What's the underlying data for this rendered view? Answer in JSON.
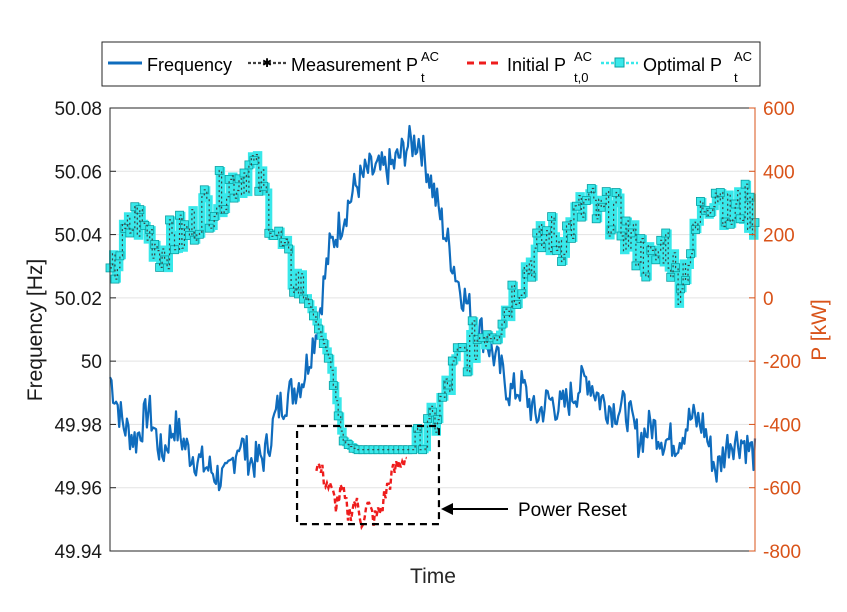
{
  "chart_data": {
    "type": "line",
    "xlabel": "Time",
    "ylabel_left": "Frequency [Hz]",
    "ylabel_right": "P [kW]",
    "ylim_left": [
      49.94,
      50.08
    ],
    "ylim_right": [
      -800,
      600
    ],
    "yticks_left": [
      "50.08",
      "50.06",
      "50.04",
      "50.02",
      "50",
      "49.98",
      "49.96",
      "49.94"
    ],
    "yticks_right": [
      "600",
      "400",
      "200",
      "0",
      "-200",
      "-400",
      "-600",
      "-800"
    ],
    "xlim": [
      0,
      100
    ],
    "grid": true,
    "legend_position": "top",
    "legend": [
      {
        "label": "Frequency",
        "base": "Frequency",
        "sup": "",
        "sub": ""
      },
      {
        "label": "Measurement P_t^AC",
        "base": "Measurement P",
        "sup": "AC",
        "sub": "t"
      },
      {
        "label": "Initial P_t,0^AC",
        "base": "Initial P",
        "sup": "AC",
        "sub": "t,0"
      },
      {
        "label": "Optimal P_t^AC",
        "base": "Optimal P",
        "sup": "AC",
        "sub": "t"
      }
    ],
    "annotation": {
      "text": "Power Reset",
      "box_x_range": [
        29,
        51
      ],
      "box_y_range_kw": [
        -405,
        -715
      ]
    },
    "colors": {
      "frequency": "#0f6cbd",
      "measurement": "#404040",
      "initial": "#ee1c1c",
      "optimal": "#38e8ea",
      "right_axis": "#d95319"
    },
    "series": [
      {
        "name": "Frequency",
        "axis": "left",
        "x": [
          0,
          2,
          4,
          6,
          8,
          10,
          12,
          14,
          16,
          18,
          20,
          22,
          24,
          26,
          28,
          30,
          32,
          34,
          36,
          38,
          40,
          42,
          44,
          46,
          48,
          50,
          52,
          54,
          56,
          58,
          60,
          62,
          64,
          66,
          68,
          70,
          72,
          74,
          76,
          78,
          80,
          82,
          84,
          86,
          88,
          90,
          92,
          94,
          96,
          98,
          100
        ],
        "values": [
          49.995,
          49.98,
          49.975,
          49.985,
          49.97,
          49.98,
          49.972,
          49.968,
          49.965,
          49.962,
          49.975,
          49.968,
          49.97,
          49.985,
          49.99,
          49.995,
          50.01,
          50.035,
          50.045,
          50.055,
          50.06,
          50.06,
          50.062,
          50.068,
          50.07,
          50.055,
          50.04,
          50.025,
          50.015,
          50.008,
          50.0,
          49.99,
          49.992,
          49.982,
          49.988,
          49.985,
          49.99,
          49.995,
          49.988,
          49.985,
          49.985,
          49.975,
          49.98,
          49.975,
          49.975,
          49.982,
          49.98,
          49.965,
          49.975,
          49.975,
          49.97
        ]
      },
      {
        "name": "Optimal P_t^AC",
        "axis": "right",
        "x": [
          0,
          2,
          4,
          6,
          8,
          10,
          12,
          14,
          16,
          18,
          20,
          22,
          24,
          26,
          28,
          30,
          32,
          34,
          36,
          38,
          40,
          42,
          44,
          46,
          48,
          50,
          52,
          54,
          56,
          58,
          60,
          62,
          64,
          66,
          68,
          70,
          72,
          74,
          76,
          78,
          80,
          82,
          84,
          86,
          88,
          90,
          92,
          94,
          96,
          98,
          100
        ],
        "values": [
          50,
          180,
          250,
          200,
          150,
          190,
          200,
          280,
          300,
          360,
          380,
          420,
          320,
          180,
          80,
          20,
          -80,
          -200,
          -450,
          -480,
          -480,
          -480,
          -480,
          -480,
          -480,
          -400,
          -300,
          -200,
          -150,
          -100,
          -80,
          0,
          80,
          150,
          200,
          180,
          250,
          300,
          250,
          280,
          200,
          150,
          100,
          180,
          50,
          150,
          300,
          350,
          250,
          300,
          250
        ]
      },
      {
        "name": "Initial P_t,0^AC",
        "axis": "right",
        "x": [
          32,
          33,
          34,
          35,
          36,
          37,
          38,
          39,
          40,
          41,
          42,
          43,
          44,
          45,
          46
        ],
        "values": [
          -520,
          -560,
          -600,
          -650,
          -610,
          -690,
          -640,
          -700,
          -660,
          -700,
          -670,
          -600,
          -550,
          -520,
          -500
        ]
      }
    ]
  }
}
